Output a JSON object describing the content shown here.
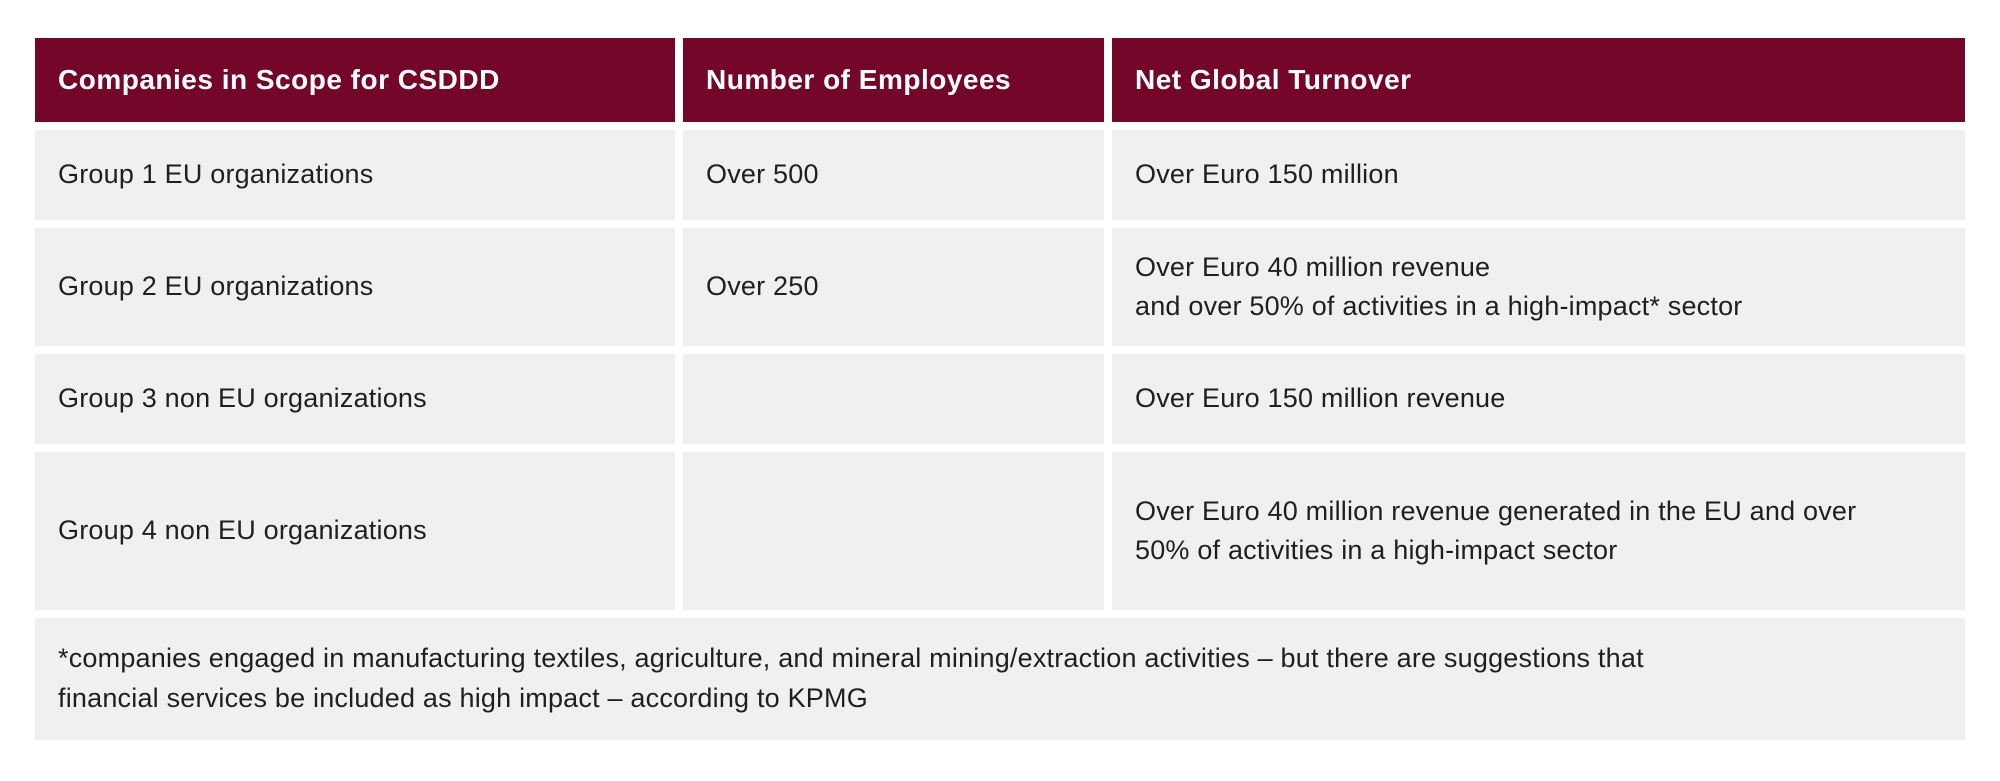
{
  "style": {
    "header_bg": "#740629",
    "header_text": "#ffffff",
    "row_bg": "#f0f0ef",
    "body_text": "#1f1f1f",
    "page_bg": "#ffffff"
  },
  "chart_data": {
    "type": "table",
    "title": "Companies in Scope for CSDDD",
    "columns": [
      "Companies in Scope for CSDDD",
      "Number of Employees",
      "Net Global Turnover"
    ],
    "rows": [
      [
        "Group 1 EU organizations",
        "Over 500",
        "Over Euro 150 million"
      ],
      [
        "Group 2 EU organizations",
        "Over 250",
        "Over Euro 40 million revenue\nand over 50% of activities in a high-impact* sector"
      ],
      [
        "Group 3 non EU organizations",
        "",
        "Over Euro 150 million revenue"
      ],
      [
        "Group 4 non EU organizations",
        "",
        "Over Euro 40 million revenue generated in the EU and over\n50% of activities in a high-impact sector"
      ]
    ],
    "footnote": "*companies engaged in manufacturing textiles, agriculture, and mineral mining/extraction activities – but there are suggestions that\nfinancial services be included as high impact – according to KPMG",
    "layout": {
      "grid": "off",
      "header_position": "top",
      "footnote_row_span": "full-width"
    }
  }
}
